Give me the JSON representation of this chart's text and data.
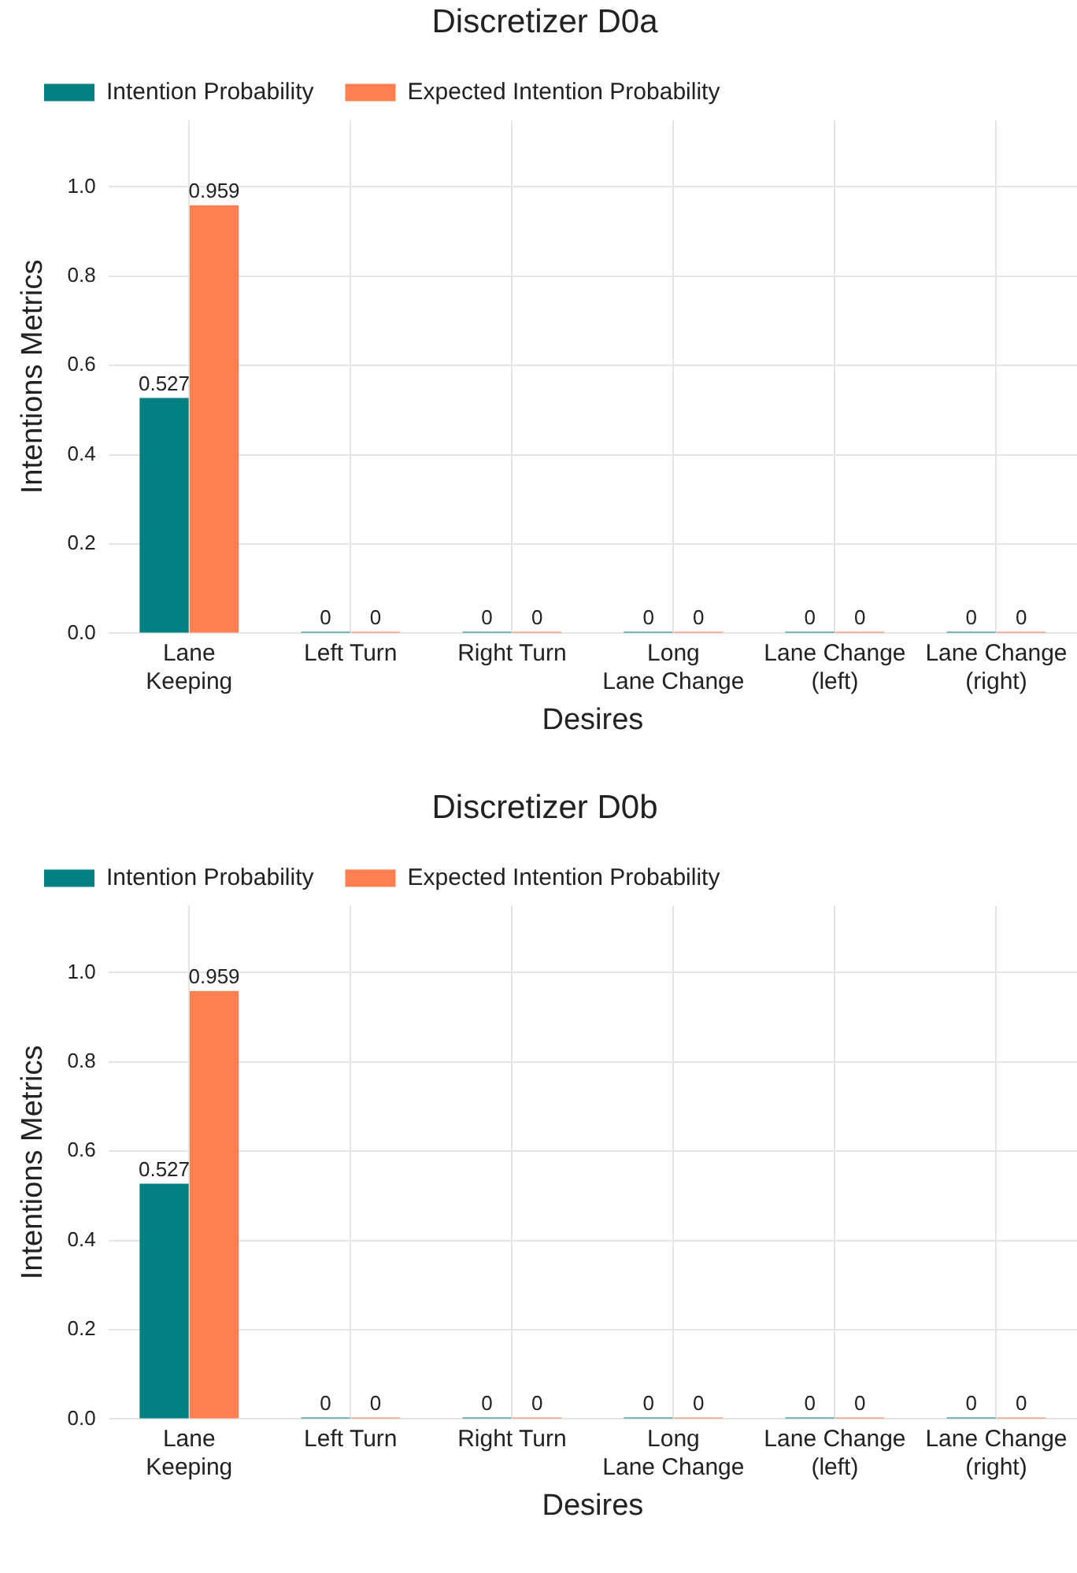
{
  "chart_data": [
    {
      "type": "bar",
      "title": "Discretizer D0a",
      "xlabel": "Desires",
      "ylabel": "Intentions Metrics",
      "categories": [
        "Lane\nKeeping",
        "Left Turn",
        "Right Turn",
        "Long\nLane Change",
        "Lane Change\n(left)",
        "Lane Change\n(right)"
      ],
      "series": [
        {
          "name": "Intention Probability",
          "color": "#008080",
          "values": [
            0.527,
            0,
            0,
            0,
            0,
            0
          ]
        },
        {
          "name": "Expected Intention Probability",
          "color": "#ff7f50",
          "values": [
            0.959,
            0,
            0,
            0,
            0,
            0
          ]
        }
      ],
      "ylim": [
        0,
        1.15
      ],
      "yticks": [
        {
          "value": 0,
          "label": "0.0"
        },
        {
          "value": 0.2,
          "label": "0.2"
        },
        {
          "value": 0.4,
          "label": "0.4"
        },
        {
          "value": 0.6,
          "label": "0.6"
        },
        {
          "value": 0.8,
          "label": "0.8"
        },
        {
          "value": 1,
          "label": "1.0"
        }
      ],
      "grid": true,
      "legend": "top left",
      "data_labels": true
    },
    {
      "type": "bar",
      "title": "Discretizer D0b",
      "xlabel": "Desires",
      "ylabel": "Intentions Metrics",
      "categories": [
        "Lane\nKeeping",
        "Left Turn",
        "Right Turn",
        "Long\nLane Change",
        "Lane Change\n(left)",
        "Lane Change\n(right)"
      ],
      "series": [
        {
          "name": "Intention Probability",
          "color": "#008080",
          "values": [
            0.527,
            0,
            0,
            0,
            0,
            0
          ]
        },
        {
          "name": "Expected Intention Probability",
          "color": "#ff7f50",
          "values": [
            0.959,
            0,
            0,
            0,
            0,
            0
          ]
        }
      ],
      "ylim": [
        0,
        1.15
      ],
      "yticks": [
        {
          "value": 0,
          "label": "0.0"
        },
        {
          "value": 0.2,
          "label": "0.2"
        },
        {
          "value": 0.4,
          "label": "0.4"
        },
        {
          "value": 0.6,
          "label": "0.6"
        },
        {
          "value": 0.8,
          "label": "0.8"
        },
        {
          "value": 1,
          "label": "1.0"
        }
      ],
      "grid": true,
      "legend": "top left",
      "data_labels": true
    }
  ]
}
